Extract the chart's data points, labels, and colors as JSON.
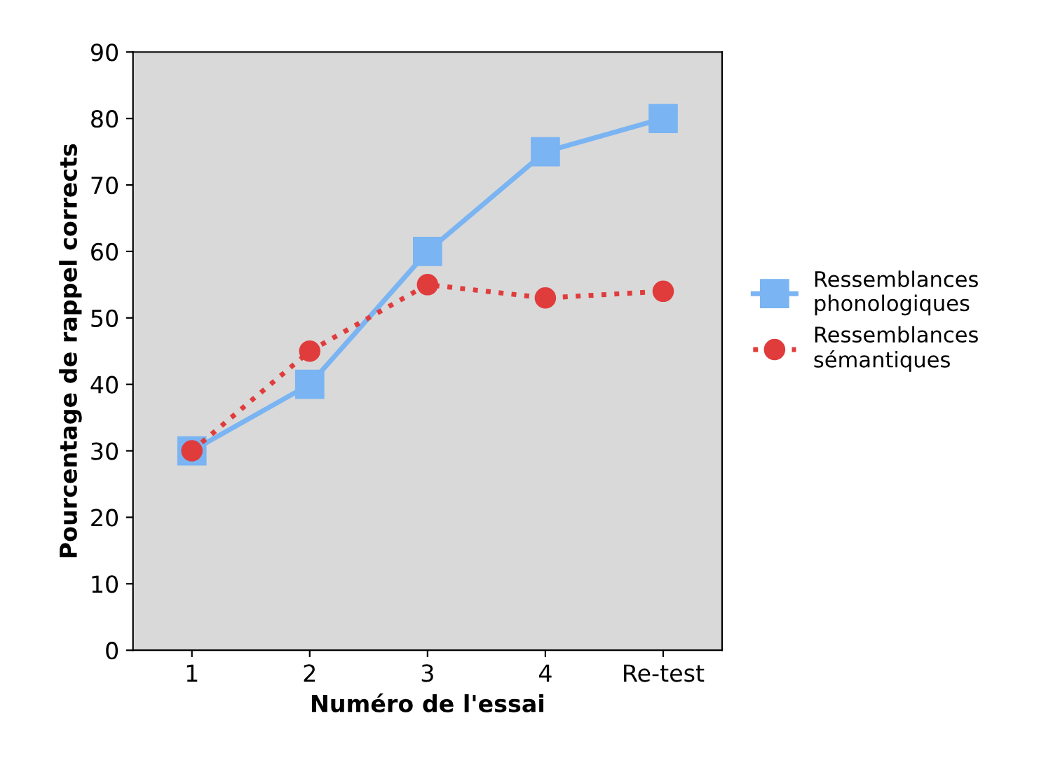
{
  "chart_data": {
    "type": "line",
    "xlabel": "Numéro de l'essai",
    "ylabel": "Pourcentage de rappel corrects",
    "categories": [
      "1",
      "2",
      "3",
      "4",
      "Re-test"
    ],
    "series": [
      {
        "name": "Ressemblances\nphonologiques",
        "color": "#7ab4f2",
        "values": [
          30,
          40,
          60,
          75,
          80
        ],
        "marker": "square",
        "line_style": "solid"
      },
      {
        "name": "Ressemblances\nsémantiques",
        "color": "#e03c3c",
        "values": [
          30,
          45,
          55,
          53,
          54
        ],
        "marker": "circle",
        "line_style": "dotted"
      }
    ],
    "ylim": [
      0,
      90
    ],
    "yticks": [
      0,
      10,
      20,
      30,
      40,
      50,
      60,
      70,
      80,
      90
    ],
    "grid": false,
    "legend": "right"
  }
}
